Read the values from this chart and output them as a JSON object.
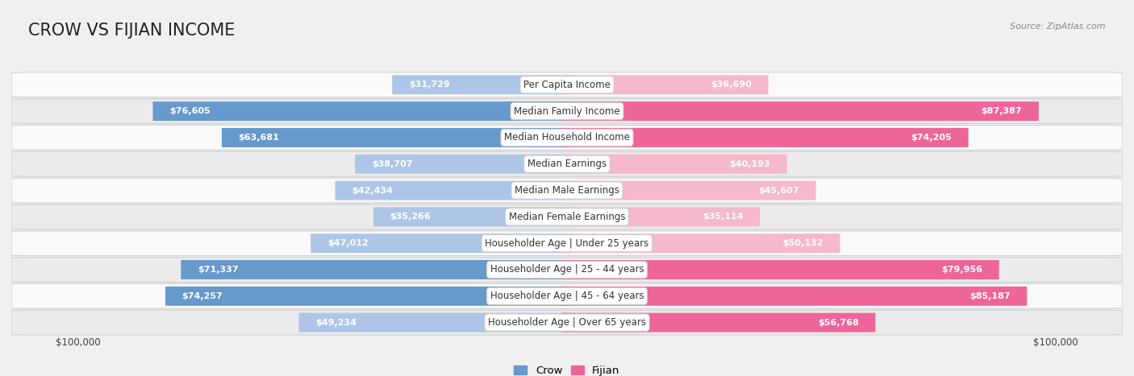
{
  "title": "CROW VS FIJIAN INCOME",
  "source": "Source: ZipAtlas.com",
  "categories": [
    "Per Capita Income",
    "Median Family Income",
    "Median Household Income",
    "Median Earnings",
    "Median Male Earnings",
    "Median Female Earnings",
    "Householder Age | Under 25 years",
    "Householder Age | 25 - 44 years",
    "Householder Age | 45 - 64 years",
    "Householder Age | Over 65 years"
  ],
  "crow_values": [
    31729,
    76605,
    63681,
    38707,
    42434,
    35266,
    47012,
    71337,
    74257,
    49234
  ],
  "fijian_values": [
    36690,
    87387,
    74205,
    40193,
    45607,
    35114,
    50132,
    79956,
    85187,
    56768
  ],
  "crow_color_light": "#adc6e8",
  "crow_color_solid": "#6699cc",
  "fijian_color_light": "#f5b8cc",
  "fijian_color_solid": "#ee6699",
  "crow_label": "Crow",
  "fijian_label": "Fijian",
  "max_val": 100000,
  "background_color": "#f0f0f0",
  "row_bg_even": "#fafafa",
  "row_bg_odd": "#ebebeb",
  "title_fontsize": 15,
  "label_fontsize": 8.5,
  "value_fontsize": 8.0
}
